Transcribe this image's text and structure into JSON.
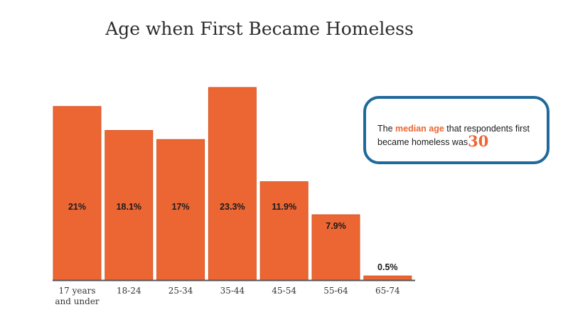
{
  "title": "Age when First Became Homeless",
  "callout": {
    "text_before": "The ",
    "highlight": "median age",
    "text_after": " that respondents first became homeless was",
    "value": "30"
  },
  "colors": {
    "bar": "#ec6634",
    "callout_border": "#1f6a9a",
    "accent": "#ec6634"
  },
  "chart_data": {
    "type": "bar",
    "title": "Age when First Became Homeless",
    "categories": [
      "17 years and under",
      "18-24",
      "25-34",
      "35-44",
      "45-54",
      "55-64",
      "65-74"
    ],
    "values": [
      21,
      18.1,
      17,
      23.3,
      11.9,
      7.9,
      0.5
    ],
    "data_labels": [
      "21%",
      "18.1%",
      "17%",
      "23.3%",
      "11.9%",
      "7.9%",
      "0.5%"
    ],
    "xlabel": "",
    "ylabel": "",
    "ylim": [
      0,
      23.3
    ],
    "grid": false,
    "legend": "none"
  }
}
